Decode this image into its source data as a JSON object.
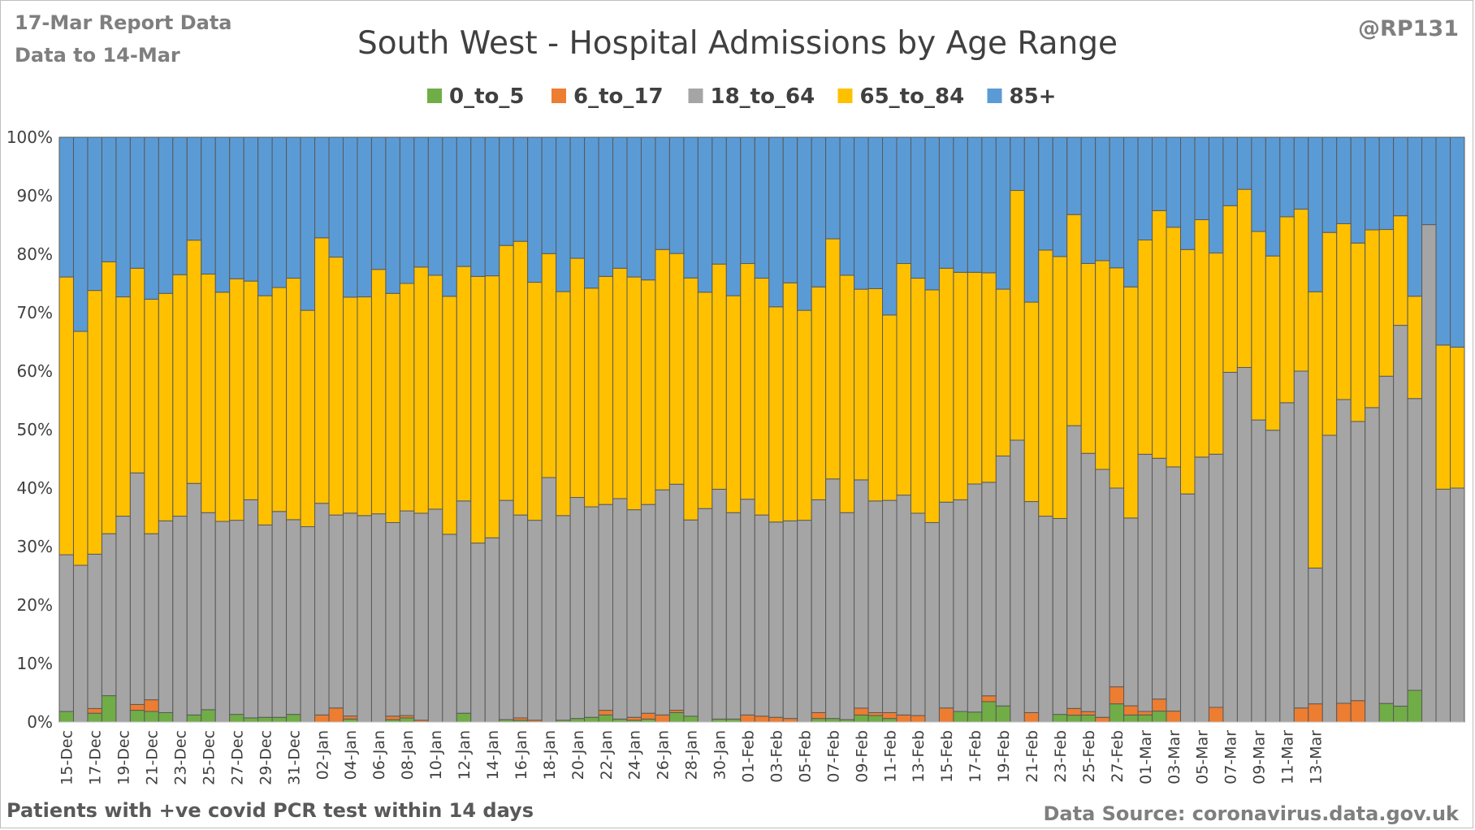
{
  "header": {
    "report_label": "17-Mar Report Data",
    "data_label": "Data to 14-Mar",
    "handle": "@RP131"
  },
  "footer": {
    "left": "Patients with  +ve covid PCR test within 14 days",
    "right": "Data Source: coronavirus.data.gov.uk"
  },
  "chart_data": {
    "type": "bar",
    "stacked": "percent",
    "title": "South West - Hospital Admissions by Age Range",
    "xlabel": "",
    "ylabel": "",
    "ylim": [
      0,
      100
    ],
    "y_ticks": [
      "0%",
      "10%",
      "20%",
      "30%",
      "40%",
      "50%",
      "60%",
      "70%",
      "80%",
      "90%",
      "100%"
    ],
    "grid": true,
    "legend_position": "top",
    "x_tick_labels": [
      "15-Dec",
      "17-Dec",
      "19-Dec",
      "21-Dec",
      "23-Dec",
      "25-Dec",
      "27-Dec",
      "29-Dec",
      "31-Dec",
      "02-Jan",
      "04-Jan",
      "06-Jan",
      "08-Jan",
      "10-Jan",
      "12-Jan",
      "14-Jan",
      "16-Jan",
      "18-Jan",
      "20-Jan",
      "22-Jan",
      "24-Jan",
      "26-Jan",
      "28-Jan",
      "30-Jan",
      "01-Feb",
      "03-Feb",
      "05-Feb",
      "07-Feb",
      "09-Feb",
      "11-Feb",
      "13-Feb",
      "15-Feb",
      "17-Feb",
      "19-Feb",
      "21-Feb",
      "23-Feb",
      "25-Feb",
      "27-Feb",
      "01-Mar",
      "03-Mar",
      "05-Mar",
      "07-Mar",
      "09-Mar",
      "11-Mar",
      "13-Mar"
    ],
    "colors": [
      "#70ad47",
      "#ed7d31",
      "#a5a5a5",
      "#ffc000",
      "#5b9bd5"
    ],
    "series": [
      {
        "name": "0_to_5",
        "values": [
          1.8,
          0,
          1.5,
          4.5,
          0,
          2,
          1.8,
          1.6,
          0,
          1.2,
          2.1,
          0,
          1.3,
          0.7,
          0.8,
          0.8,
          1.3,
          0,
          0,
          0,
          0.5,
          0,
          0,
          0.4,
          0.7,
          0,
          0,
          0,
          1.5,
          0,
          0,
          0.4,
          0.3,
          0,
          0,
          0.3,
          0.6,
          0.8,
          1.2,
          0.5,
          0.3,
          0.5,
          0,
          1.6,
          1,
          0,
          0.5,
          0.5,
          0,
          0,
          0,
          0,
          0,
          0.6,
          0.6,
          0.4,
          1.2,
          1.1,
          0.6,
          0,
          0,
          0,
          0,
          1.8,
          1.7,
          3.5,
          2.8,
          0,
          0,
          0,
          1.3,
          1.2,
          1.2,
          0,
          3.2,
          1.2,
          1.2,
          1.9,
          0,
          0,
          0,
          0,
          0,
          0,
          0,
          0,
          0,
          0,
          0,
          0,
          0,
          0,
          0,
          3.3,
          2.7,
          5.2,
          0,
          0,
          0
        ]
      },
      {
        "name": "6_to_17",
        "values": [
          0,
          0,
          0.8,
          0,
          0,
          1,
          2,
          0,
          0,
          0,
          0,
          0,
          0,
          0,
          0,
          0,
          0,
          0,
          1.2,
          2.4,
          0.5,
          0,
          0,
          0.6,
          0.4,
          0.3,
          0,
          0,
          0,
          0,
          0,
          0,
          0.4,
          0.3,
          0,
          0,
          0,
          0,
          0.8,
          0,
          0.5,
          1,
          1.2,
          0.4,
          0,
          0,
          0,
          0,
          1.2,
          1,
          0.8,
          0.6,
          0,
          1,
          0,
          0,
          1.2,
          0.5,
          1,
          1.2,
          1.1,
          0,
          2.4,
          0,
          0,
          1,
          0,
          0,
          1.6,
          0,
          0,
          1.2,
          0.6,
          0.8,
          3,
          1.6,
          0.6,
          2.1,
          1.9,
          0,
          0,
          2.5,
          0,
          0,
          0,
          0,
          0,
          2.4,
          3.1,
          0,
          3.2,
          3.8,
          0,
          0,
          0,
          0,
          0,
          0,
          0
        ]
      },
      {
        "name": "18_to_64",
        "values": [
          26.8,
          26.8,
          26.4,
          27.7,
          35.2,
          39.6,
          28.4,
          32.8,
          35.2,
          39.6,
          33.7,
          34.3,
          33.2,
          37.3,
          32.9,
          35.2,
          33.3,
          33.4,
          36.2,
          33,
          34,
          35.3,
          35.6,
          33.1,
          35,
          35.4,
          36.4,
          32.1,
          36.3,
          30.6,
          31.5,
          37.5,
          34.7,
          34.2,
          41.8,
          35,
          37.8,
          36,
          35.2,
          37.7,
          35.5,
          35.7,
          38.5,
          38.5,
          33.9,
          36.5,
          39.5,
          35.3,
          36.9,
          34.4,
          33.4,
          33.8,
          34.5,
          36.4,
          40.8,
          35.4,
          39.5,
          36.2,
          36.3,
          37.6,
          34.6,
          34.1,
          35.2,
          36.2,
          39,
          36.7,
          43.6,
          48.2,
          36.1,
          35.2,
          33.5,
          50.1,
          44.6,
          42.4,
          35,
          32.5,
          43.8,
          42,
          42.6,
          39,
          45.3,
          43.3,
          59.8,
          59.9,
          51.6,
          49.9,
          54.6,
          57.6,
          23.2,
          48.2,
          52,
          49.6,
          55,
          58.2,
          65,
          47.9,
          74,
          39.1,
          40
        ]
      },
      {
        "name": "65_to_84",
        "values": [
          47.5,
          40,
          45.1,
          46.5,
          37.5,
          35,
          40.1,
          38.9,
          41.3,
          41.6,
          40.8,
          39.2,
          41.3,
          37.4,
          39.2,
          38.3,
          41.3,
          37,
          45.4,
          44.1,
          36.2,
          37.4,
          41.8,
          39.2,
          38.9,
          42.1,
          40,
          40.7,
          40.1,
          45.6,
          44.8,
          43.6,
          46.8,
          40.7,
          38.3,
          38.3,
          40.9,
          37.4,
          39,
          39.4,
          39.8,
          38.4,
          41.1,
          39.3,
          41.8,
          37,
          38.7,
          37.1,
          40.3,
          40.5,
          36.8,
          40.7,
          35.9,
          36.4,
          40.9,
          40.6,
          33,
          36.3,
          31.7,
          39.6,
          40.2,
          39.8,
          40,
          38.9,
          36.2,
          36,
          29.1,
          42.7,
          34.1,
          45.5,
          44.8,
          37.4,
          32.8,
          35.7,
          38.8,
          40,
          36.5,
          43.2,
          41.8,
          41.8,
          40.6,
          34.4,
          28.5,
          30.1,
          32.2,
          29.8,
          31.8,
          27.7,
          47.2,
          34.1,
          30.1,
          31.7,
          31.1,
          26.1,
          18.7,
          16.8,
          0,
          24.2,
          24.1
        ]
      },
      {
        "name": "85+",
        "values": [
          23.9,
          33.2,
          26.2,
          21.3,
          27.3,
          22.4,
          27.7,
          26.7,
          23.5,
          17.6,
          23.4,
          26.5,
          24.2,
          24.6,
          27.1,
          25.7,
          24.1,
          29.6,
          17.2,
          20.5,
          26.8,
          27.3,
          22.6,
          26.7,
          25,
          22.2,
          23.6,
          27.2,
          22.1,
          23.8,
          23.7,
          18.5,
          17.8,
          24.8,
          19.9,
          26.4,
          20.7,
          25.8,
          23.8,
          22.4,
          23.9,
          24.4,
          19.2,
          19.8,
          24.3,
          26.5,
          21.8,
          27.1,
          21.6,
          24.1,
          29,
          24.9,
          29.6,
          25.6,
          17.3,
          23.6,
          26.3,
          25.9,
          30.4,
          21.6,
          24.1,
          26.1,
          22.4,
          23.1,
          23.1,
          23.3,
          26.5,
          9.1,
          28.2,
          19.3,
          20.4,
          13.7,
          21.8,
          21.1,
          23,
          25.9,
          17.5,
          12.8,
          15.7,
          19.2,
          14.1,
          19.8,
          11.7,
          8.8,
          16.1,
          20.3,
          13.6,
          12.3,
          26.4,
          16,
          14.8,
          18.8,
          16.2,
          16.4,
          13.4,
          26.1,
          13,
          34.9,
          35.9
        ]
      }
    ]
  }
}
